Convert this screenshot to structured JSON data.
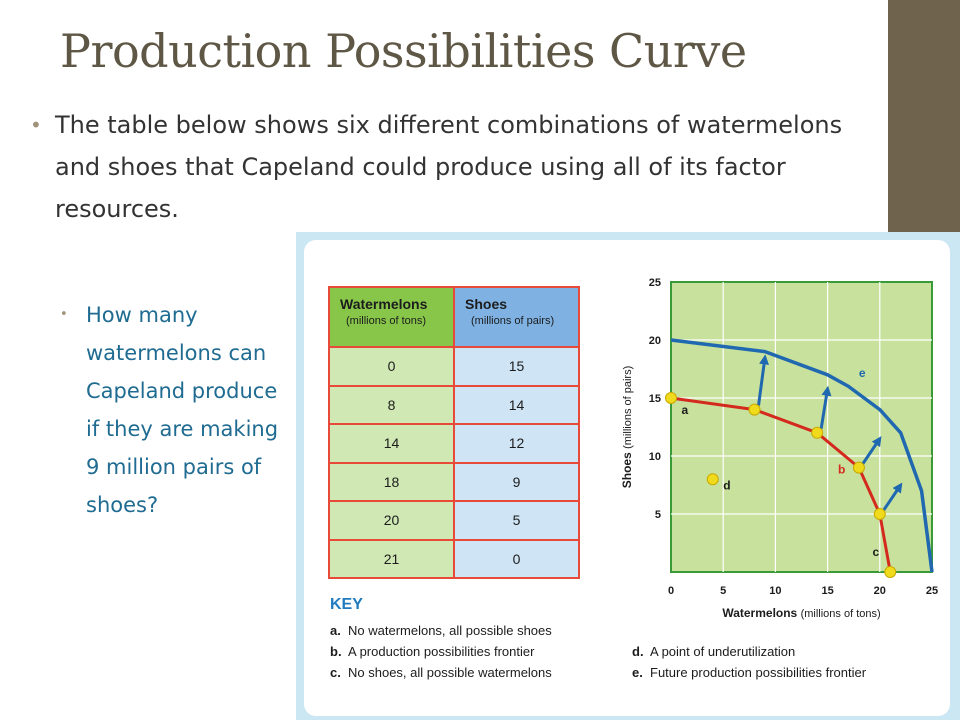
{
  "slide": {
    "title": "Production Possibilities Curve",
    "bullet_main": "The table below shows six different combinations of watermelons and shoes that Capeland could produce using all of its factor resources.",
    "bullet_sub": "How many watermelons can Capeland produce if they are making 9 million pairs of shoes?",
    "colors": {
      "title": "#5f5745",
      "sub_bullet": "#1f6b91",
      "accent_bar": "#6f634d",
      "panel_border": "#cbe7f3"
    }
  },
  "table": {
    "headers": [
      {
        "name": "Watermelons",
        "unit": "(millions of tons)"
      },
      {
        "name": "Shoes",
        "unit": "(millions of pairs)"
      }
    ],
    "rows": [
      [
        "0",
        "15"
      ],
      [
        "8",
        "14"
      ],
      [
        "14",
        "12"
      ],
      [
        "18",
        "9"
      ],
      [
        "20",
        "5"
      ],
      [
        "21",
        "0"
      ]
    ]
  },
  "key": {
    "title": "KEY",
    "items": [
      {
        "letter": "a.",
        "text": "No watermelons, all possible shoes"
      },
      {
        "letter": "b.",
        "text": "A production possibilities frontier"
      },
      {
        "letter": "c.",
        "text": "No shoes, all possible watermelons"
      },
      {
        "letter": "d.",
        "text": "A point of underutilization"
      },
      {
        "letter": "e.",
        "text": "Future production possibilities frontier"
      }
    ]
  },
  "chart_data": {
    "type": "line",
    "xlabel": "Watermelons",
    "xlabel_unit": "(millions of tons)",
    "ylabel": "Shoes",
    "ylabel_unit": "(millions of pairs)",
    "xlim": [
      0,
      25
    ],
    "ylim": [
      0,
      25
    ],
    "x_ticks": [
      0,
      5,
      10,
      15,
      20,
      25
    ],
    "y_ticks": [
      5,
      10,
      15,
      20,
      25
    ],
    "grid": true,
    "background": "#c8e29d",
    "series": [
      {
        "name": "b",
        "color": "#d42a1e",
        "points": [
          [
            0,
            15
          ],
          [
            8,
            14
          ],
          [
            14,
            12
          ],
          [
            18,
            9
          ],
          [
            20,
            5
          ],
          [
            21,
            0
          ]
        ]
      },
      {
        "name": "e",
        "color": "#2068b0",
        "points": [
          [
            0,
            20
          ],
          [
            9,
            19
          ],
          [
            15,
            17
          ],
          [
            17,
            16
          ],
          [
            20,
            14
          ],
          [
            22,
            12
          ],
          [
            24,
            7
          ],
          [
            25,
            0
          ]
        ]
      }
    ],
    "point_d": {
      "label": "d",
      "x": 4,
      "y": 8,
      "color": "#f0da1c"
    },
    "point_labels": [
      {
        "label": "a",
        "x": 1,
        "y": 13.6
      },
      {
        "label": "b",
        "x": 16,
        "y": 8.5
      },
      {
        "label": "c",
        "x": 19.3,
        "y": 1.4
      },
      {
        "label": "e",
        "x": 18,
        "y": 16.8
      },
      {
        "label": "d",
        "x": 5,
        "y": 7.1
      }
    ],
    "arrows": [
      {
        "from": [
          8,
          14
        ],
        "to": [
          9,
          18.5
        ]
      },
      {
        "from": [
          14,
          12
        ],
        "to": [
          15,
          15.8
        ]
      },
      {
        "from": [
          18,
          9
        ],
        "to": [
          20,
          11.5
        ]
      },
      {
        "from": [
          20,
          5
        ],
        "to": [
          22,
          7.5
        ]
      }
    ]
  }
}
